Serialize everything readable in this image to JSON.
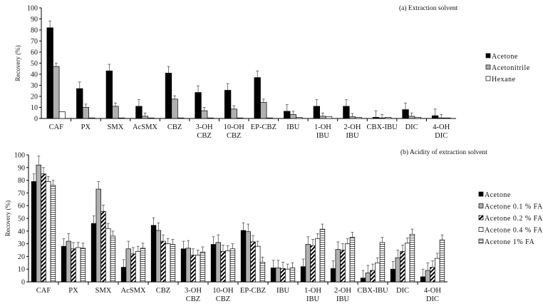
{
  "chart_data": [
    {
      "type": "bar",
      "title": "(a) Extraction  solvent",
      "xlabel": "",
      "ylabel": "Recovery  (%)",
      "ylim": [
        0,
        100
      ],
      "yticks": [
        0,
        10,
        20,
        30,
        40,
        50,
        60,
        70,
        80,
        90,
        100
      ],
      "grid": false,
      "legend_position": "right",
      "categories": [
        "CAF",
        "PX",
        "SMX",
        "AcSMX",
        "CBZ",
        "3-OH\nCBZ",
        "10-OH\nCBZ",
        "EP-CBZ",
        "IBU",
        "1-OH\nIBU",
        "2-OH\nIBU",
        "CBX-IBU",
        "DIC",
        "4-OH\nDIC"
      ],
      "series": [
        {
          "name": "Acetone",
          "fill": "#000000",
          "pattern": "solid",
          "values": [
            82,
            27,
            43,
            11,
            41,
            23.5,
            25.5,
            37,
            6.5,
            11,
            11,
            1,
            8,
            2.5
          ],
          "errors": [
            6,
            6,
            6,
            6,
            6,
            6,
            6,
            6,
            6,
            6,
            6,
            6,
            6,
            6
          ]
        },
        {
          "name": "Acetonitrile",
          "fill": "#b0b0b0",
          "pattern": "solid",
          "values": [
            47,
            10,
            11,
            2,
            17.5,
            7,
            8.5,
            14.5,
            3.5,
            2,
            1.5,
            0.5,
            2,
            0.5
          ],
          "errors": [
            3,
            3,
            3,
            3,
            3,
            3,
            3,
            3,
            3,
            3,
            3,
            3,
            3,
            3
          ]
        },
        {
          "name": "Hexane",
          "fill": "#ffffff",
          "pattern": "solid",
          "values": [
            6,
            0.5,
            0.5,
            0.5,
            0.5,
            0.5,
            0.5,
            0.5,
            1,
            1.5,
            1,
            1,
            1,
            0.5
          ],
          "errors": [
            0,
            0,
            0,
            0,
            0,
            0,
            0,
            0,
            0,
            0,
            0,
            0,
            0,
            0
          ]
        }
      ]
    },
    {
      "type": "bar",
      "title": "(b) Acidity  of extraction  solvent",
      "xlabel": "",
      "ylabel": "Recovery  (%)",
      "ylim": [
        0,
        100
      ],
      "yticks": [
        0,
        10,
        20,
        30,
        40,
        50,
        60,
        70,
        80,
        90,
        100
      ],
      "grid": false,
      "legend_position": "right",
      "categories": [
        "CAF",
        "PX",
        "SMX",
        "AcSMX",
        "CBZ",
        "3-OH\nCBZ",
        "10-OH\nCBZ",
        "EP-CBZ",
        "IBU",
        "1-OH\nIBU",
        "2-OH\nIBU",
        "CBX-IBU",
        "DIC",
        "4-OH\nDIC"
      ],
      "series": [
        {
          "name": "Acetone",
          "fill": "#000000",
          "pattern": "solid",
          "values": [
            79,
            28,
            46,
            11.5,
            44.5,
            26,
            29.5,
            40.5,
            11,
            12,
            10.5,
            3,
            10,
            4
          ],
          "errors": [
            6,
            6,
            6,
            6,
            6,
            6,
            6,
            6,
            6,
            6,
            6,
            6,
            6,
            6
          ]
        },
        {
          "name": "Acetone 0.1 % FA",
          "fill": "#b0b0b0",
          "pattern": "solid",
          "values": [
            92,
            32,
            73,
            26,
            40.5,
            26.5,
            31,
            39.5,
            11,
            29.5,
            25.5,
            7,
            19,
            9
          ],
          "errors": [
            7,
            6,
            6,
            6,
            6,
            6,
            6,
            6,
            6,
            6,
            6,
            6,
            6,
            6
          ]
        },
        {
          "name": "Acetone 0.2 % FA",
          "fill": "#000000",
          "pattern": "diagonal",
          "values": [
            85,
            26,
            55.5,
            22,
            32,
            21,
            24,
            31.5,
            10.5,
            28.5,
            25,
            9,
            24,
            11.5
          ],
          "errors": [
            5,
            5,
            5,
            5,
            5,
            5,
            5,
            5,
            5,
            5,
            5,
            5,
            5,
            5
          ]
        },
        {
          "name": "Acetone 0.4 % FA",
          "fill": "#ffffff",
          "pattern": "solid",
          "values": [
            79,
            27,
            42,
            24,
            30,
            21,
            24.5,
            28,
            10,
            34,
            30,
            15,
            30.5,
            18.5
          ],
          "errors": [
            4,
            4,
            4,
            4,
            4,
            4,
            4,
            4,
            4,
            4,
            4,
            4,
            4,
            4
          ]
        },
        {
          "name": "Acetone 1% FA",
          "fill": "#ffffff",
          "pattern": "horizontal",
          "values": [
            76,
            26.5,
            36,
            26.5,
            29.5,
            23.5,
            26,
            15.5,
            11,
            41.5,
            35,
            31,
            37.5,
            33
          ],
          "errors": [
            4,
            4,
            4,
            4,
            4,
            4,
            4,
            4,
            4,
            4,
            4,
            4,
            4,
            4
          ]
        }
      ]
    }
  ]
}
